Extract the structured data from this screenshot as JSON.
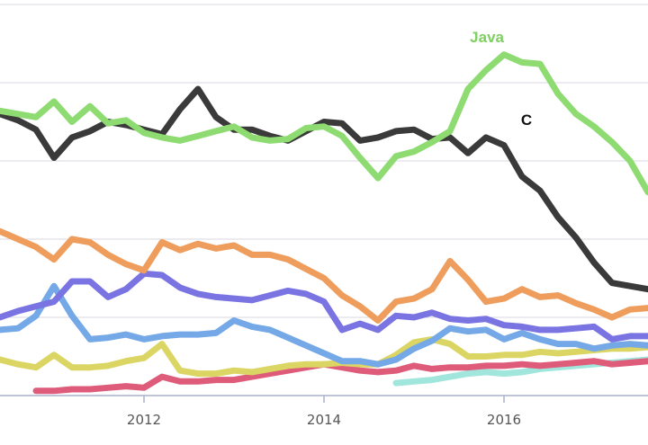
{
  "chart_data": {
    "type": "line",
    "title": "",
    "xlabel": "",
    "ylabel": "",
    "xlim": [
      2010.4,
      2017.6
    ],
    "ylim": [
      0,
      25
    ],
    "x_ticks": [
      2012,
      2014,
      2016
    ],
    "x_tick_labels": [
      "2012",
      "2014",
      "2016"
    ],
    "grid": true,
    "series": [
      {
        "name": "Java",
        "label": "Java",
        "color": "#8edb72",
        "x": [
          2010.4,
          2010.6,
          2010.8,
          2011.0,
          2011.2,
          2011.4,
          2011.6,
          2011.8,
          2012.0,
          2012.2,
          2012.4,
          2012.6,
          2012.8,
          2013.0,
          2013.2,
          2013.4,
          2013.6,
          2013.8,
          2014.0,
          2014.2,
          2014.4,
          2014.6,
          2014.8,
          2015.0,
          2015.2,
          2015.4,
          2015.6,
          2015.8,
          2016.0,
          2016.2,
          2016.4,
          2016.6,
          2016.8,
          2017.0,
          2017.2,
          2017.4,
          2017.6
        ],
        "values": [
          18.2,
          18.0,
          17.8,
          18.8,
          17.5,
          18.5,
          17.4,
          17.6,
          16.8,
          16.5,
          16.3,
          16.6,
          16.9,
          17.2,
          16.5,
          16.3,
          16.4,
          17.1,
          17.2,
          16.6,
          15.2,
          13.9,
          15.3,
          15.6,
          16.2,
          16.9,
          19.6,
          20.8,
          21.8,
          21.3,
          21.2,
          19.3,
          18.0,
          17.2,
          16.2,
          15.0,
          13.0
        ]
      },
      {
        "name": "C",
        "label": "C",
        "color": "#3a3a3a",
        "x": [
          2010.4,
          2010.6,
          2010.8,
          2011.0,
          2011.2,
          2011.4,
          2011.6,
          2011.8,
          2012.0,
          2012.2,
          2012.4,
          2012.6,
          2012.8,
          2013.0,
          2013.2,
          2013.4,
          2013.6,
          2013.8,
          2014.0,
          2014.2,
          2014.4,
          2014.6,
          2014.8,
          2015.0,
          2015.2,
          2015.4,
          2015.6,
          2015.8,
          2016.0,
          2016.2,
          2016.4,
          2016.6,
          2016.8,
          2017.0,
          2017.2,
          2017.4,
          2017.6
        ],
        "values": [
          18.0,
          17.6,
          17.0,
          15.2,
          16.5,
          16.9,
          17.5,
          17.3,
          17.0,
          16.7,
          18.3,
          19.6,
          17.8,
          17.0,
          17.0,
          16.6,
          16.3,
          16.9,
          17.5,
          17.4,
          16.3,
          16.5,
          16.9,
          17.0,
          16.4,
          16.5,
          15.5,
          16.5,
          16.0,
          14.0,
          13.1,
          11.4,
          10.1,
          8.5,
          7.2,
          7.0,
          6.8
        ]
      },
      {
        "name": "Orange series",
        "label": "",
        "color": "#ee9d5c",
        "x": [
          2010.4,
          2010.6,
          2010.8,
          2011.0,
          2011.2,
          2011.4,
          2011.6,
          2011.8,
          2012.0,
          2012.2,
          2012.4,
          2012.6,
          2012.8,
          2013.0,
          2013.2,
          2013.4,
          2013.6,
          2013.8,
          2014.0,
          2014.2,
          2014.4,
          2014.6,
          2014.8,
          2015.0,
          2015.2,
          2015.4,
          2015.6,
          2015.8,
          2016.0,
          2016.2,
          2016.4,
          2016.6,
          2016.8,
          2017.0,
          2017.2,
          2017.4,
          2017.6
        ],
        "values": [
          10.5,
          10.0,
          9.5,
          8.7,
          10.0,
          9.8,
          9.0,
          8.4,
          8.0,
          9.8,
          9.3,
          9.7,
          9.4,
          9.6,
          9.0,
          9.0,
          8.7,
          8.1,
          7.5,
          6.4,
          5.7,
          4.8,
          6.0,
          6.2,
          6.8,
          8.6,
          7.4,
          6.0,
          6.2,
          6.8,
          6.3,
          6.4,
          5.9,
          5.5,
          5.0,
          5.5,
          5.6
        ]
      },
      {
        "name": "Purple series",
        "label": "",
        "color": "#7a74e2",
        "x": [
          2010.4,
          2010.6,
          2010.8,
          2011.0,
          2011.2,
          2011.4,
          2011.6,
          2011.8,
          2012.0,
          2012.2,
          2012.4,
          2012.6,
          2012.8,
          2013.0,
          2013.2,
          2013.4,
          2013.6,
          2013.8,
          2014.0,
          2014.2,
          2014.4,
          2014.6,
          2014.8,
          2015.0,
          2015.2,
          2015.4,
          2015.6,
          2015.8,
          2016.0,
          2016.2,
          2016.4,
          2016.6,
          2016.8,
          2017.0,
          2017.2,
          2017.4,
          2017.6
        ],
        "values": [
          5.0,
          5.4,
          5.7,
          6.0,
          7.3,
          7.3,
          6.3,
          6.8,
          7.8,
          7.7,
          6.9,
          6.5,
          6.3,
          6.2,
          6.1,
          6.4,
          6.7,
          6.5,
          6.0,
          4.2,
          4.6,
          4.2,
          5.1,
          5.0,
          5.3,
          4.9,
          4.8,
          4.9,
          4.5,
          4.4,
          4.2,
          4.2,
          4.3,
          4.4,
          3.6,
          3.8,
          3.8
        ]
      },
      {
        "name": "Blue series",
        "label": "",
        "color": "#74a8e6",
        "x": [
          2010.4,
          2010.6,
          2010.8,
          2011.0,
          2011.2,
          2011.4,
          2011.6,
          2011.8,
          2012.0,
          2012.2,
          2012.4,
          2012.6,
          2012.8,
          2013.0,
          2013.2,
          2013.4,
          2013.6,
          2013.8,
          2014.0,
          2014.2,
          2014.4,
          2014.6,
          2014.8,
          2015.0,
          2015.2,
          2015.4,
          2015.6,
          2015.8,
          2016.0,
          2016.2,
          2016.4,
          2016.6,
          2016.8,
          2017.0,
          2017.2,
          2017.4,
          2017.6
        ],
        "values": [
          4.2,
          4.3,
          5.1,
          7.0,
          5.1,
          3.6,
          3.7,
          3.9,
          3.6,
          3.8,
          3.9,
          3.9,
          4.0,
          4.8,
          4.4,
          4.2,
          3.7,
          3.2,
          2.7,
          2.2,
          2.2,
          2.0,
          2.3,
          3.0,
          3.5,
          4.3,
          4.1,
          4.2,
          3.6,
          4.0,
          3.6,
          3.3,
          3.3,
          3.0,
          3.2,
          3.3,
          3.2
        ]
      },
      {
        "name": "Yellow series",
        "label": "",
        "color": "#dbd664",
        "x": [
          2010.4,
          2010.6,
          2010.8,
          2011.0,
          2011.2,
          2011.4,
          2011.6,
          2011.8,
          2012.0,
          2012.2,
          2012.4,
          2012.6,
          2012.8,
          2013.0,
          2013.2,
          2013.4,
          2013.6,
          2013.8,
          2014.0,
          2014.2,
          2014.4,
          2014.6,
          2014.8,
          2015.0,
          2015.2,
          2015.4,
          2015.6,
          2015.8,
          2016.0,
          2016.2,
          2016.4,
          2016.6,
          2016.8,
          2017.0,
          2017.2,
          2017.4,
          2017.6
        ],
        "values": [
          2.3,
          2.0,
          1.8,
          2.6,
          1.8,
          1.8,
          1.9,
          2.2,
          2.4,
          3.3,
          1.6,
          1.4,
          1.4,
          1.6,
          1.5,
          1.7,
          1.9,
          2.0,
          2.0,
          2.1,
          2.0,
          2.0,
          2.6,
          3.4,
          3.6,
          3.3,
          2.5,
          2.5,
          2.6,
          2.6,
          2.8,
          2.7,
          2.8,
          2.9,
          3.0,
          3.0,
          3.1
        ]
      },
      {
        "name": "Red series",
        "label": "",
        "color": "#de5b7a",
        "x": [
          2010.8,
          2011.0,
          2011.2,
          2011.4,
          2011.6,
          2011.8,
          2012.0,
          2012.2,
          2012.4,
          2012.6,
          2012.8,
          2013.0,
          2013.2,
          2013.4,
          2013.6,
          2013.8,
          2014.0,
          2014.2,
          2014.4,
          2014.6,
          2014.8,
          2015.0,
          2015.2,
          2015.4,
          2015.6,
          2015.8,
          2016.0,
          2016.2,
          2016.4,
          2016.6,
          2016.8,
          2017.0,
          2017.2,
          2017.4,
          2017.6
        ],
        "values": [
          0.3,
          0.3,
          0.4,
          0.4,
          0.5,
          0.6,
          0.5,
          1.2,
          0.9,
          0.9,
          1.0,
          1.0,
          1.2,
          1.4,
          1.6,
          1.8,
          2.0,
          1.8,
          1.6,
          1.5,
          1.6,
          1.9,
          1.7,
          1.8,
          1.8,
          1.9,
          1.9,
          2.0,
          1.9,
          2.0,
          2.1,
          2.2,
          2.0,
          2.1,
          2.2
        ]
      },
      {
        "name": "Teal series",
        "label": "",
        "color": "#a0e6dc",
        "x": [
          2014.8,
          2015.0,
          2015.2,
          2015.4,
          2015.6,
          2015.8,
          2016.0,
          2016.2,
          2016.4,
          2016.6,
          2016.8,
          2017.0,
          2017.2,
          2017.4,
          2017.6
        ],
        "values": [
          0.8,
          0.9,
          1.0,
          1.2,
          1.4,
          1.5,
          1.4,
          1.5,
          1.7,
          1.8,
          1.9,
          2.0,
          2.1,
          2.2,
          2.3
        ]
      }
    ]
  }
}
